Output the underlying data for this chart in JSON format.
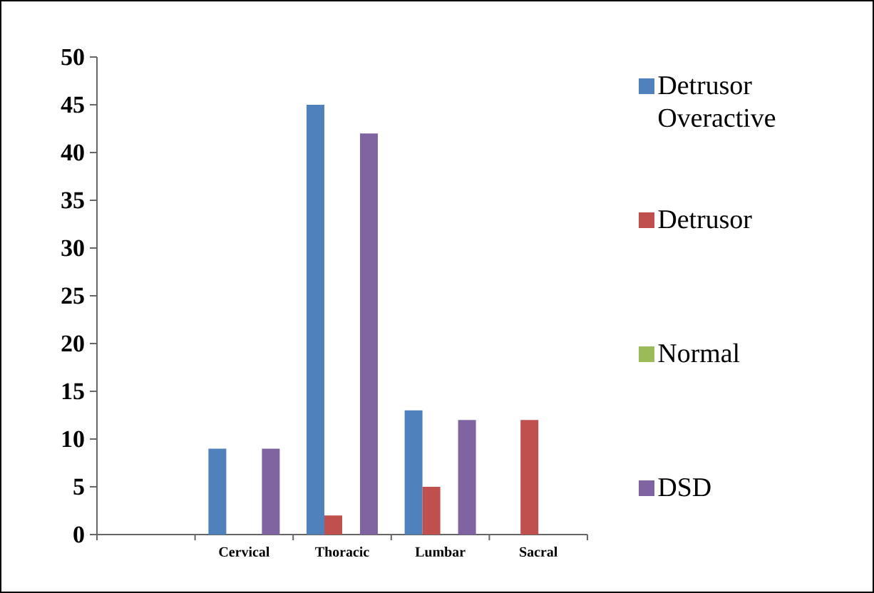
{
  "chart_data": {
    "type": "bar",
    "categories": [
      null,
      "Cervical",
      "Thoracic",
      "Lumbar",
      "Sacral"
    ],
    "series": [
      {
        "name": "Detrusor Overactive",
        "color": "#4f81bd",
        "values": [
          null,
          9,
          45,
          13,
          null
        ]
      },
      {
        "name": "Detrusor",
        "color": "#c0504d",
        "values": [
          null,
          null,
          2,
          5,
          12
        ]
      },
      {
        "name": "Normal",
        "color": "#9bbb59",
        "values": [
          null,
          null,
          null,
          null,
          null
        ]
      },
      {
        "name": "DSD",
        "color": "#8064a2",
        "values": [
          null,
          9,
          42,
          12,
          null
        ]
      }
    ],
    "ylim": [
      0,
      50
    ],
    "yticks": [
      0,
      5,
      10,
      15,
      20,
      25,
      30,
      35,
      40,
      45,
      50
    ],
    "grid": false,
    "legend": "right"
  }
}
